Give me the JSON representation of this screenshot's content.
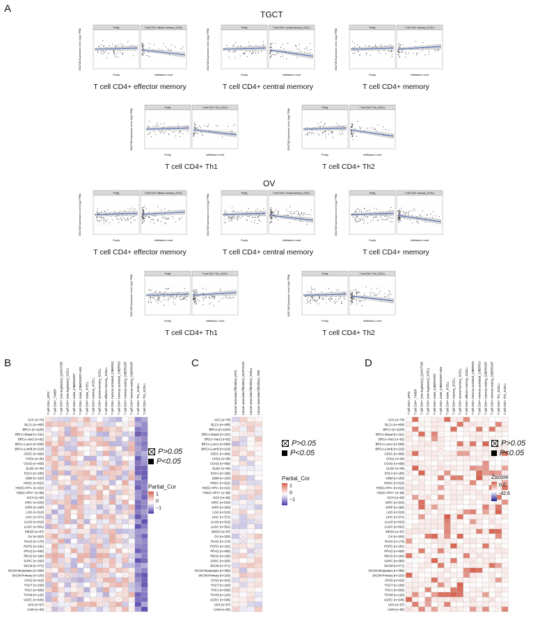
{
  "panel_labels": {
    "a": "A",
    "b": "B",
    "c": "C",
    "d": "D"
  },
  "tgct": {
    "title": "TGCT",
    "plots": [
      {
        "caption": "T cell CD4+ effector memory",
        "facet_right": "T cell CD4+ effector memory_XCELL"
      },
      {
        "caption": "T cell CD4+ central memory",
        "facet_right": "T cell CD4+ central memory_XCELL"
      },
      {
        "caption": "T cell CD4+ memory",
        "facet_right": "T cell CD4+ memory_XCELL"
      },
      {
        "caption": "T cell CD4+ Th1",
        "facet_right": "T cell CD4+ Th1_XCELL"
      },
      {
        "caption": "T cell CD4+ Th2",
        "facet_right": "T cell CD4+ Th2_XCELL"
      }
    ]
  },
  "ov": {
    "title": "OV",
    "plots": [
      {
        "caption": "T cell CD4+ effector memory",
        "facet_right": "T cell CD4+ effector memory_XCELL"
      },
      {
        "caption": "T cell CD4+ central memory",
        "facet_right": "T cell CD4+ central memory_XCELL"
      },
      {
        "caption": "T cell CD4+ memory",
        "facet_right": "T cell CD4+ memory_XCELL"
      },
      {
        "caption": "T cell CD4+ Th1",
        "facet_right": "T cell CD4+ Th1_XCELL"
      },
      {
        "caption": "T cell CD4+ Th2",
        "facet_right": "T cell CD4+ Th2_XCELL"
      }
    ]
  },
  "scatter_common": {
    "facet_left": "Purity",
    "xlabel_left": "Purity",
    "xlabel_right": "Infiltration Level",
    "ylabel": "GOLT1B Expression Level (log2 TPM)"
  },
  "legend_bc": {
    "p_gt": "P>0.05",
    "p_lt": "P<0.05",
    "title": "Partial_Cor",
    "ticks": [
      "1",
      "0",
      "−1"
    ]
  },
  "legend_d": {
    "p_gt": "P>0.05",
    "p_lt": "P<0.05",
    "title": "Zscore",
    "ticks": [
      "0.0",
      "-42.6"
    ]
  },
  "heatmap_b": {
    "columns": [
      "T cell CD4+_EPIC",
      "T cell CD4+_TIMER",
      "T cell CD4+ (non-regulatory)_QUANTISEQ",
      "T cell CD4+ (non-regulatory)_XCELL",
      "T cell CD4+ naive_CIBERSORT",
      "T cell CD4+ naive_CIBERSORT-ABS",
      "T cell CD4+ naive_XCELL",
      "T cell CD4+ memory_XCELL",
      "T cell CD4+ central memory_XCELL",
      "T cell CD4+ effector memory_XCELL",
      "T cell CD4+ memory activated_CIBERSORT",
      "T cell CD4+ memory activated_CIBERSORT-ABS",
      "T cell CD4+ memory resting_CIBERSORT",
      "T cell CD4+ memory resting_CIBERSORT-ABS",
      "T cell CD4+ Th1_XCELL",
      "T cell CD4+ Th2_XCELL"
    ]
  },
  "heatmap_c": {
    "columns": [
      "Cancer associated fibroblast_EPIC",
      "Cancer associated fibroblast_MCPCOUNTER",
      "Cancer associated fibroblast_XCELL",
      "Cancer associated fibroblast_TIDE"
    ]
  },
  "rows_b": [
    "ACC (n=79)",
    "BLCA (n=408)",
    "BRCA (n=1100)",
    "BRCA-Basal (n=191)",
    "BRCA-Her2 (n=82)",
    "BRCA-LumA (n=568)",
    "BRCA-LumB (n=219)",
    "CESC (n=306)",
    "CHOL (n=36)",
    "COAD (n=458)",
    "DLBC (n=48)",
    "ESCA (n=185)",
    "GBM (n=153)",
    "HNSC (n=522)",
    "HNSC-HPV- (n=422)",
    "HNSC-HPV+ (n=98)",
    "KICH (n=66)",
    "KIRC (n=533)",
    "KIRP (n=290)",
    "LGG (n=516)",
    "LIHC (n=371)",
    "LUAD (n=515)",
    "LUSC (n=501)",
    "MESO (n=87)",
    "OV (n=303)",
    "PAAD (n=179)",
    "PCPG (n=181)",
    "PRAD (n=498)",
    "READ (n=166)",
    "SARC (n=260)",
    "SKCM (n=471)",
    "SKCM-Metastasis (n=368)",
    "SKCM-Primary (n=103)",
    "STAD (n=415)",
    "TGCT (n=150)",
    "THCA (n=509)",
    "THYM (n=120)",
    "UCEC (n=545)",
    "UCS (n=57)",
    "UVM (n=80)"
  ],
  "rows_c": [
    "ACC (n=79)",
    "BLCA (n=408)",
    "BRCA (n=1100)",
    "BRCA-Basal (n=191)",
    "BRCA-Her2 (n=82)",
    "BRCA-LumA (n=568)",
    "BRCA-LumB (n=219)",
    "CESC (n=306)",
    "CHOL (n=36)",
    "COAD (n=458)",
    "DLBC (n=48)",
    "ESCA (n=185)",
    "GBM (n=153)",
    "HNSC (n=522)",
    "HNSC-HPV- (n=422)",
    "HNSC-HPV+ (n=98)",
    "KICH (n=66)",
    "KIRC (n=533)",
    "KIRP (n=290)",
    "LGG (n=516)",
    "LIHC (n=371)",
    "LUAD (n=515)",
    "LUSC (n=501)",
    "MESO (n=87)",
    "OV (n=303)",
    "PAAD (n=179)",
    "PCPG (n=181)",
    "PRAD (n=498)",
    "READ (n=166)",
    "SARC (n=260)",
    "SKCM (n=471)",
    "SKCM-Metastasis (n=368)",
    "SKCM-Primary (n=103)",
    "STAD (n=415)",
    "TGCT (n=150)",
    "THCA (n=509)",
    "THYM (n=120)",
    "UCEC (n=545)",
    "UCS (n=57)",
    "UVM (n=80)"
  ],
  "rows_d": [
    "ACC (n=79)",
    "BLCA (n=408)",
    "BRCA (n=1100)",
    "BRCA-Basal (n=191)",
    "BRCA-Her2 (n=82)",
    "BRCA-LumA (n=568)",
    "BRCA-LumB (n=219)",
    "CESC (n=306)",
    "CHOL (n=36)",
    "COAD (n=458)",
    "DLBC (n=48)",
    "ESCA (n=185)",
    "GBM (n=153)",
    "HNSC (n=522)",
    "HNSC-HPV- (n=422)",
    "HNSC-HPV+ (n=98)",
    "KICH (n=66)",
    "KIRC (n=533)",
    "KIRP (n=290)",
    "LGG (n=516)",
    "LIHC (n=371)",
    "LUAD (n=515)",
    "LUSC (n=501)",
    "MESO (n=87)",
    "OV (n=303)",
    "PAAD (n=179)",
    "PCPG (n=181)",
    "PRAD (n=498)",
    "READ (n=166)",
    "SARC (n=260)",
    "SKCM (n=471)",
    "SKCM-Metastasis (n=368)",
    "SKCM-Primary (n=103)",
    "STAD (n=415)",
    "TGCT (n=150)",
    "THCA (n=509)",
    "THYM (n=120)",
    "UCEC (n=545)",
    "UCS (n=57)",
    "UVM (n=80)"
  ],
  "heatmap_d": {
    "columns": [
      "T cell CD4+_EPIC",
      "T cell CD4+_TIMER",
      "T cell CD4+ (non-regulatory)_QUANTISEQ",
      "T cell CD4+ (non-regulatory)_XCELL",
      "T cell CD4+ naive_CIBERSORT",
      "T cell CD4+ naive_CIBERSORT-ABS",
      "T cell CD4+ naive_XCELL",
      "T cell CD4+ memory_XCELL",
      "T cell CD4+ central memory_XCELL",
      "T cell CD4+ effector memory_XCELL",
      "T cell CD4+ memory activated_CIBERSORT",
      "T cell CD4+ memory activated_CIBERSORT-ABS",
      "T cell CD4+ memory resting_CIBERSORT",
      "T cell CD4+ memory resting_CIBERSORT-ABS",
      "T cell CD4+ Th1_XCELL",
      "T cell CD4+ Th2_XCELL"
    ]
  },
  "colors": {
    "pos": "#d6604d",
    "neg": "#4a3aa8",
    "grid": "#c8c8c8",
    "line": "#3b5bb5",
    "band": "#bfbfbf"
  }
}
